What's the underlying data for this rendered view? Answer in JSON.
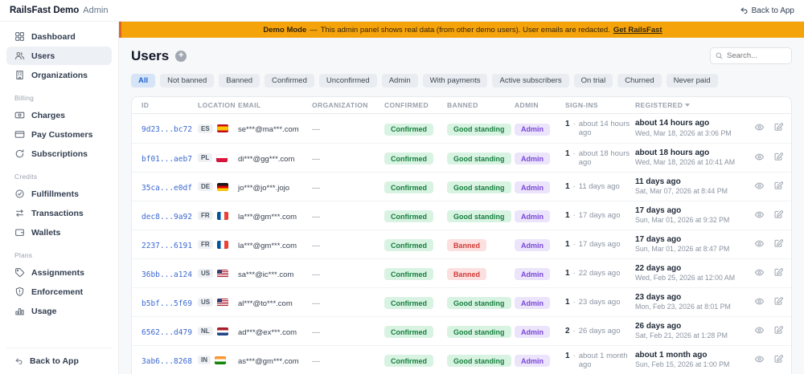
{
  "header": {
    "brand": "RailsFast Demo",
    "brand_suffix": "Admin",
    "back_to_app": "Back to App"
  },
  "banner": {
    "bold": "Demo Mode",
    "sep": "—",
    "body": "This admin panel shows real data (from other demo users). User emails are redacted.",
    "link": "Get RailsFast"
  },
  "sidebar": {
    "sections": [
      {
        "label": "",
        "items": [
          {
            "label": "Dashboard",
            "icon": "dashboard-icon",
            "active": false
          },
          {
            "label": "Users",
            "icon": "users-icon",
            "active": true
          },
          {
            "label": "Organizations",
            "icon": "organizations-icon",
            "active": false
          }
        ]
      },
      {
        "label": "Billing",
        "items": [
          {
            "label": "Charges",
            "icon": "charges-icon",
            "active": false
          },
          {
            "label": "Pay Customers",
            "icon": "pay-customers-icon",
            "active": false
          },
          {
            "label": "Subscriptions",
            "icon": "subscriptions-icon",
            "active": false
          }
        ]
      },
      {
        "label": "Credits",
        "items": [
          {
            "label": "Fulfillments",
            "icon": "fulfillments-icon",
            "active": false
          },
          {
            "label": "Transactions",
            "icon": "transactions-icon",
            "active": false
          },
          {
            "label": "Wallets",
            "icon": "wallets-icon",
            "active": false
          }
        ]
      },
      {
        "label": "Plans",
        "items": [
          {
            "label": "Assignments",
            "icon": "assignments-icon",
            "active": false
          },
          {
            "label": "Enforcement",
            "icon": "enforcement-icon",
            "active": false
          },
          {
            "label": "Usage",
            "icon": "usage-icon",
            "active": false
          }
        ]
      }
    ],
    "back_to_app": "Back to App"
  },
  "main": {
    "title": "Users",
    "add_button": "+",
    "search_placeholder": "Search...",
    "active_filter": "All",
    "filters": [
      "All",
      "Not banned",
      "Banned",
      "Confirmed",
      "Unconfirmed",
      "Admin",
      "With payments",
      "Active subscribers",
      "On trial",
      "Churned",
      "Never paid"
    ]
  },
  "table": {
    "columns": [
      "ID",
      "LOCATION",
      "EMAIL",
      "ORGANIZATION",
      "CONFIRMED",
      "BANNED",
      "ADMIN",
      "SIGN-INS",
      "REGISTERED"
    ],
    "sort_column": "REGISTERED",
    "signin_separator": "·",
    "rows": [
      {
        "id": "9d23...bc72",
        "location_code": "ES",
        "flag": "es",
        "email": "se***@ma***.com",
        "organization": "—",
        "confirmed_label": "Confirmed",
        "banned_label": "Good standing",
        "banned_status": "good",
        "admin_label": "Admin",
        "signins_count": "1",
        "signins_ago": "about 14 hours ago",
        "registered_relative": "about 14 hours ago",
        "registered_absolute": "Wed, Mar 18, 2026 at 3:06 PM"
      },
      {
        "id": "bf01...aeb7",
        "location_code": "PL",
        "flag": "pl",
        "email": "di***@gg***.com",
        "organization": "—",
        "confirmed_label": "Confirmed",
        "banned_label": "Good standing",
        "banned_status": "good",
        "admin_label": "Admin",
        "signins_count": "1",
        "signins_ago": "about 18 hours ago",
        "registered_relative": "about 18 hours ago",
        "registered_absolute": "Wed, Mar 18, 2026 at 10:41 AM"
      },
      {
        "id": "35ca...e0df",
        "location_code": "DE",
        "flag": "de",
        "email": "jo***@jo***.jojo",
        "organization": "—",
        "confirmed_label": "Confirmed",
        "banned_label": "Good standing",
        "banned_status": "good",
        "admin_label": "Admin",
        "signins_count": "1",
        "signins_ago": "11 days ago",
        "registered_relative": "11 days ago",
        "registered_absolute": "Sat, Mar 07, 2026 at 8:44 PM"
      },
      {
        "id": "dec8...9a92",
        "location_code": "FR",
        "flag": "fr",
        "email": "la***@gm***.com",
        "organization": "—",
        "confirmed_label": "Confirmed",
        "banned_label": "Good standing",
        "banned_status": "good",
        "admin_label": "Admin",
        "signins_count": "1",
        "signins_ago": "17 days ago",
        "registered_relative": "17 days ago",
        "registered_absolute": "Sun, Mar 01, 2026 at 9:32 PM"
      },
      {
        "id": "2237...6191",
        "location_code": "FR",
        "flag": "fr",
        "email": "la***@gm***.com",
        "organization": "—",
        "confirmed_label": "Confirmed",
        "banned_label": "Banned",
        "banned_status": "banned",
        "admin_label": "Admin",
        "signins_count": "1",
        "signins_ago": "17 days ago",
        "registered_relative": "17 days ago",
        "registered_absolute": "Sun, Mar 01, 2026 at 8:47 PM"
      },
      {
        "id": "36bb...a124",
        "location_code": "US",
        "flag": "us",
        "email": "sa***@ic***.com",
        "organization": "—",
        "confirmed_label": "Confirmed",
        "banned_label": "Banned",
        "banned_status": "banned",
        "admin_label": "Admin",
        "signins_count": "1",
        "signins_ago": "22 days ago",
        "registered_relative": "22 days ago",
        "registered_absolute": "Wed, Feb 25, 2026 at 12:00 AM"
      },
      {
        "id": "b5bf...5f69",
        "location_code": "US",
        "flag": "us",
        "email": "al***@to***.com",
        "organization": "—",
        "confirmed_label": "Confirmed",
        "banned_label": "Good standing",
        "banned_status": "good",
        "admin_label": "Admin",
        "signins_count": "1",
        "signins_ago": "23 days ago",
        "registered_relative": "23 days ago",
        "registered_absolute": "Mon, Feb 23, 2026 at 8:01 PM"
      },
      {
        "id": "6562...d479",
        "location_code": "NL",
        "flag": "nl",
        "email": "ad***@ex***.com",
        "organization": "—",
        "confirmed_label": "Confirmed",
        "banned_label": "Good standing",
        "banned_status": "good",
        "admin_label": "Admin",
        "signins_count": "2",
        "signins_ago": "26 days ago",
        "registered_relative": "26 days ago",
        "registered_absolute": "Sat, Feb 21, 2026 at 1:28 PM"
      },
      {
        "id": "3ab6...8268",
        "location_code": "IN",
        "flag": "in",
        "email": "as***@gm***.com",
        "organization": "—",
        "confirmed_label": "Confirmed",
        "banned_label": "Good standing",
        "banned_status": "good",
        "admin_label": "Admin",
        "signins_count": "1",
        "signins_ago": "about 1 month ago",
        "registered_relative": "about 1 month ago",
        "registered_absolute": "Sun, Feb 15, 2026 at 1:00 PM"
      }
    ]
  },
  "colors": {
    "banner_bg": "#f5a30b",
    "banner_edge": "#e0641f",
    "active_tab_bg": "#d6e4f8",
    "active_tab_text": "#2462c9",
    "badge_green_bg": "#d9f3e3",
    "badge_green_text": "#157f3d",
    "badge_red_bg": "#fbe0df",
    "badge_red_text": "#d03b36",
    "badge_purple_bg": "#ebe4fb",
    "badge_purple_text": "#7a47d6",
    "id_link": "#3b68cf"
  }
}
